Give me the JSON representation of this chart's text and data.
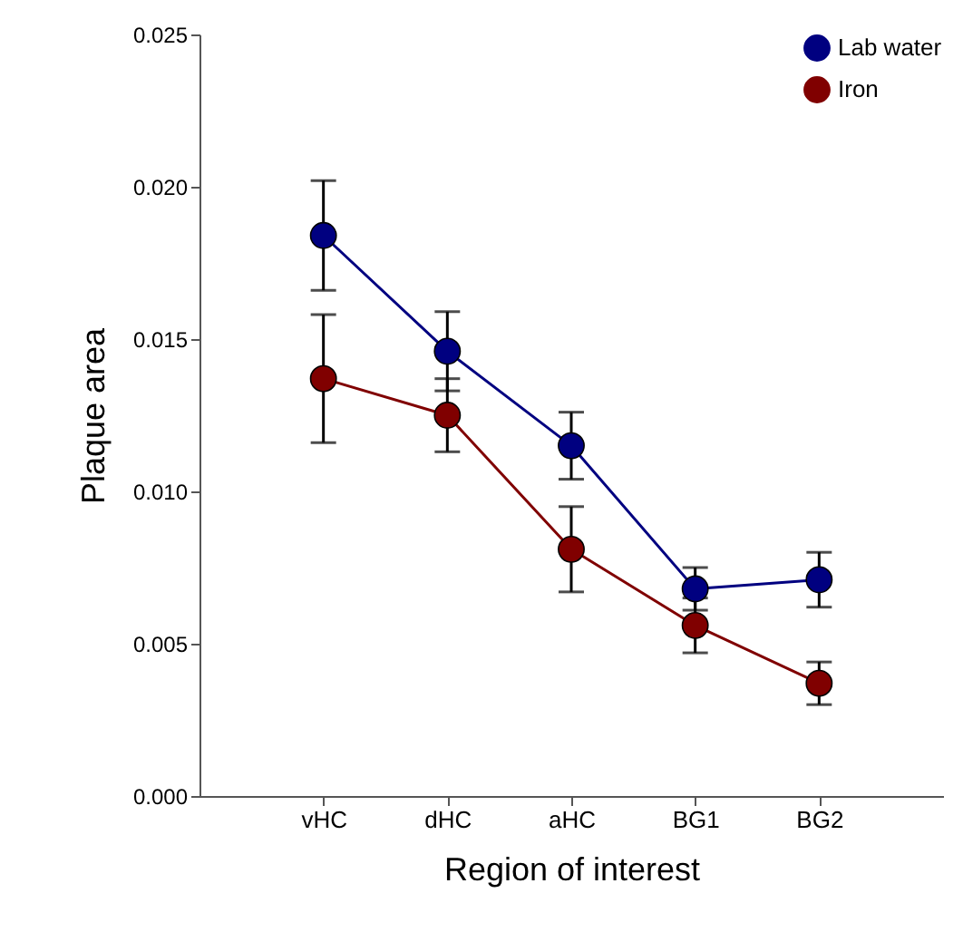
{
  "chart_data": {
    "type": "line",
    "xlabel": "Region of interest",
    "ylabel": "Plaque area",
    "categories": [
      "vHC",
      "dHC",
      "aHC",
      "BG1",
      "BG2"
    ],
    "series": [
      {
        "name": "Lab water",
        "color": "#000080",
        "values": [
          0.0184,
          0.0146,
          0.0115,
          0.0068,
          0.0071
        ],
        "errors": [
          0.0018,
          0.0013,
          0.0011,
          0.0007,
          0.0009
        ]
      },
      {
        "name": "Iron",
        "color": "#800000",
        "values": [
          0.0137,
          0.0125,
          0.0081,
          0.0056,
          0.0037
        ],
        "errors": [
          0.0021,
          0.0012,
          0.0014,
          0.0009,
          0.0007
        ]
      }
    ],
    "ylim": [
      0,
      0.025
    ],
    "yticks": [
      {
        "value": 0,
        "label": "0.000"
      },
      0.005,
      {
        "value": 0.01,
        "label": "0.010"
      },
      0.015,
      {
        "value": 0.02,
        "label": "0.020"
      },
      0.025
    ],
    "grid": false,
    "legend": "top right",
    "marker": "circle",
    "line_style": "solid"
  }
}
